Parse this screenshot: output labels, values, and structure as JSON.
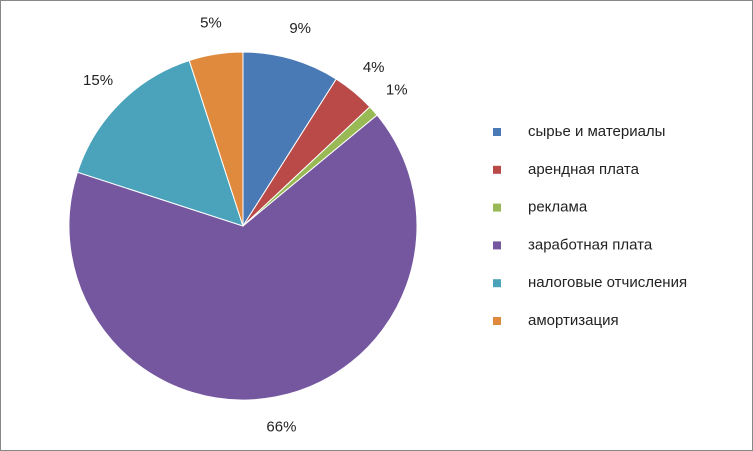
{
  "chart_data": {
    "type": "pie",
    "categories": [
      "сырье и материалы",
      "арендная плата",
      "реклама",
      "заработная плата",
      "налоговые отчисления",
      "амортизация"
    ],
    "values": [
      9,
      4,
      1,
      66,
      15,
      5
    ],
    "value_labels": [
      "9%",
      "4%",
      "1%",
      "66%",
      "15%",
      "5%"
    ],
    "colors": [
      "#4a7ab5",
      "#b94a47",
      "#98b954",
      "#7557a0",
      "#4aa3bb",
      "#e08a3e"
    ],
    "legend": "right"
  }
}
